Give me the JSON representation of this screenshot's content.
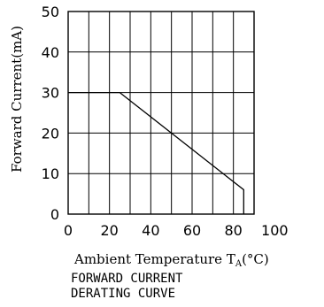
{
  "chart_data": {
    "type": "line",
    "title_lines": [
      "FORWARD CURRENT",
      "DERATING CURVE"
    ],
    "xlabel": "Ambient Temperature T",
    "xlabel_sub": "A",
    "xlabel_unit": "(°C)",
    "ylabel": "Forward Current(mA)",
    "xlim": [
      0,
      90
    ],
    "ylim": [
      0,
      50
    ],
    "x_ticks": [
      0,
      20,
      40,
      60,
      80,
      100
    ],
    "y_ticks": [
      0,
      10,
      20,
      30,
      40,
      50
    ],
    "x_grid": [
      0,
      10,
      20,
      30,
      40,
      50,
      60,
      70,
      80,
      90
    ],
    "y_grid": [
      0,
      10,
      20,
      30,
      40,
      50
    ],
    "grid": true,
    "series": [
      {
        "x": [
          0,
          25,
          85,
          85
        ],
        "y": [
          30,
          30,
          6,
          0
        ]
      }
    ]
  }
}
